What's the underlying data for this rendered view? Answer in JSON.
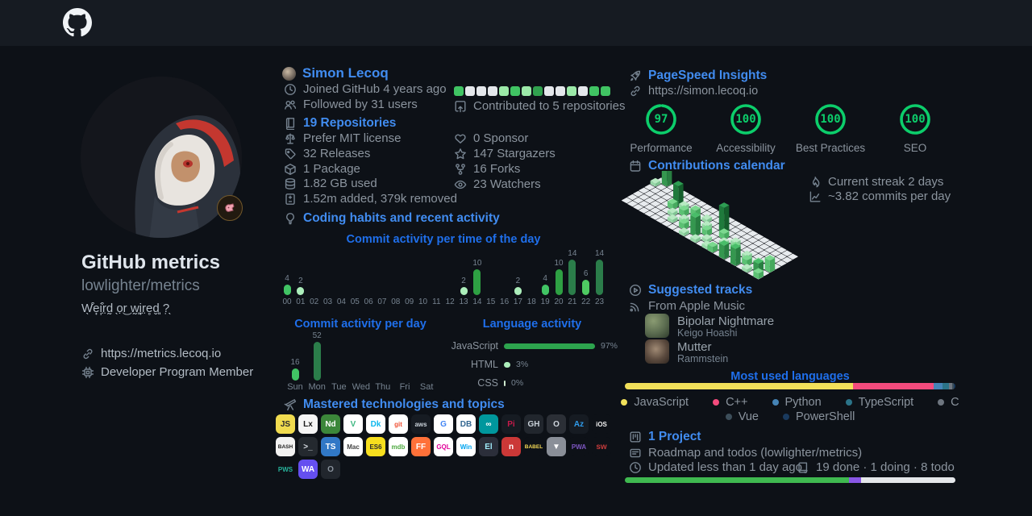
{
  "profile": {
    "title": "GitHub metrics",
    "subtitle": "lowlighter/metrics",
    "tagline": "W̖͒e̟i̦͒r̤d̰ ̖ọr͜ w̰͈i̟r̤e̥d̬͈ ?̣̖",
    "website": "https://metrics.lecoq.io",
    "membership": "Developer Program Member"
  },
  "user": {
    "name": "Simon Lecoq",
    "joined": "Joined GitHub 4 years ago",
    "followers": "Followed by 31 users"
  },
  "repositories": {
    "heading": "19 Repositories",
    "license": "Prefer MIT license",
    "releases": "32 Releases",
    "packages": "1 Package",
    "storage": "1.82 GB used",
    "diff": "1.52m added, 379k removed"
  },
  "contributions": {
    "label": "Contributed to 5 repositories",
    "squares": [
      2,
      0,
      0,
      0,
      1,
      2,
      1,
      3,
      0,
      0,
      1,
      0,
      2,
      2
    ],
    "level_colors": {
      "0": "#e4e7eb",
      "1": "#9be9a8",
      "2": "#40c463",
      "3": "#30a14e"
    }
  },
  "community": {
    "sponsors": "0 Sponsor",
    "stargazers": "147 Stargazers",
    "forks": "16 Forks",
    "watchers": "23 Watchers"
  },
  "habits": {
    "heading": "Coding habits and recent activity"
  },
  "chart_data": [
    {
      "id": "hourly",
      "type": "bar",
      "title": "Commit activity per time of the day",
      "categories": [
        "00",
        "01",
        "02",
        "03",
        "04",
        "05",
        "06",
        "07",
        "08",
        "09",
        "10",
        "11",
        "12",
        "13",
        "14",
        "15",
        "16",
        "17",
        "18",
        "19",
        "20",
        "21",
        "22",
        "23"
      ],
      "values": [
        4,
        2,
        0,
        0,
        0,
        0,
        0,
        0,
        0,
        0,
        0,
        0,
        0,
        2,
        10,
        0,
        0,
        2,
        0,
        4,
        10,
        14,
        6,
        14
      ],
      "colors": [
        "#41c464",
        "#aceebb",
        "",
        "",
        "",
        "",
        "",
        "",
        "",
        "",
        "",
        "",
        "",
        "#aceebb",
        "#2ea043",
        "",
        "",
        "#aceebb",
        "",
        "#41c464",
        "#2ea043",
        "#2b7d4a",
        "#4fca62",
        "#2b7d4a"
      ]
    },
    {
      "id": "daily",
      "type": "bar",
      "title": "Commit activity per day",
      "categories": [
        "Sun",
        "Mon",
        "Tue",
        "Wed",
        "Thu",
        "Fri",
        "Sat"
      ],
      "values": [
        16,
        52,
        0,
        0,
        0,
        0,
        0
      ],
      "colors": [
        "#41c464",
        "#2b7d4a",
        "",
        "",
        "",
        "",
        ""
      ]
    },
    {
      "id": "language_activity",
      "type": "bar",
      "title": "Language activity",
      "categories": [
        "JavaScript",
        "HTML",
        "CSS"
      ],
      "values": [
        97,
        3,
        0
      ],
      "display": [
        "97%",
        "3%",
        "0%"
      ],
      "colors": [
        "#2da44e",
        "#aceebb",
        "#cde8cd"
      ]
    },
    {
      "id": "pagespeed",
      "type": "gauge",
      "items": [
        {
          "label": "Performance",
          "value": 97
        },
        {
          "label": "Accessibility",
          "value": 100
        },
        {
          "label": "Best Practices",
          "value": 100
        },
        {
          "label": "SEO",
          "value": 100
        }
      ],
      "ring_color": "#0cce6b"
    },
    {
      "id": "most_used_languages",
      "type": "stacked-bar",
      "title": "Most used languages",
      "series": [
        {
          "name": "JavaScript",
          "color": "#f1e05a",
          "value": 69
        },
        {
          "name": "C++",
          "color": "#f34b7d",
          "value": 24.5
        },
        {
          "name": "Python",
          "color": "#4584b6",
          "value": 2.6
        },
        {
          "name": "TypeScript",
          "color": "#2b7489",
          "value": 2
        },
        {
          "name": "C",
          "color": "#6e7680",
          "value": 1
        },
        {
          "name": "Vue",
          "color": "#3c4e5a",
          "value": 0.5
        },
        {
          "name": "PowerShell",
          "color": "#1a3a5e",
          "value": 0.4
        }
      ],
      "legend_rows": [
        [
          0,
          1,
          2,
          3,
          4
        ],
        [
          5,
          6
        ]
      ]
    },
    {
      "id": "project_progress",
      "type": "stacked-bar",
      "series": [
        {
          "name": "done",
          "color": "#3fb950",
          "value": 19
        },
        {
          "name": "doing",
          "color": "#8957e5",
          "value": 1
        },
        {
          "name": "todo",
          "color": "#e4e7ea",
          "value": 8
        }
      ]
    }
  ],
  "pagespeed": {
    "heading": "PageSpeed Insights",
    "url": "https://simon.lecoq.io"
  },
  "calendar": {
    "heading": "Contributions calendar",
    "streak": "Current streak 2 days",
    "average": "~3.82 commits per day",
    "cols": 24,
    "rows": 7,
    "cells": [
      [
        1,
        0,
        3,
        10
      ],
      [
        0,
        1,
        1
      ],
      [
        4,
        1,
        1
      ],
      [
        5,
        2,
        4,
        10
      ],
      [
        5,
        3,
        2
      ],
      [
        6,
        2,
        1
      ],
      [
        6,
        4,
        1
      ],
      [
        7,
        3,
        2
      ],
      [
        7,
        5,
        1
      ],
      [
        8,
        2,
        2
      ],
      [
        8,
        4,
        1
      ],
      [
        9,
        3,
        1
      ],
      [
        9,
        5,
        2
      ],
      [
        10,
        2,
        1
      ],
      [
        10,
        4,
        2
      ],
      [
        10,
        6,
        1
      ],
      [
        11,
        3,
        1
      ],
      [
        11,
        5,
        3,
        12
      ],
      [
        12,
        4,
        2
      ],
      [
        12,
        6,
        1
      ],
      [
        13,
        2,
        4,
        16
      ],
      [
        13,
        5,
        1
      ],
      [
        14,
        3,
        2
      ],
      [
        14,
        6,
        1
      ],
      [
        15,
        4,
        1
      ],
      [
        15,
        6,
        2
      ],
      [
        16,
        3,
        1
      ],
      [
        16,
        5,
        1
      ],
      [
        17,
        4,
        2
      ],
      [
        17,
        6,
        3,
        6
      ],
      [
        18,
        5,
        1
      ],
      [
        19,
        4,
        1
      ],
      [
        19,
        6,
        3,
        10
      ],
      [
        20,
        5,
        2
      ],
      [
        21,
        4,
        1
      ],
      [
        21,
        6,
        1
      ],
      [
        22,
        5,
        3
      ],
      [
        23,
        4,
        2,
        8
      ],
      [
        23,
        6,
        2
      ]
    ]
  },
  "music": {
    "heading": "Suggested tracks",
    "source": "From Apple Music",
    "tracks": [
      {
        "title": "Bipolar Nightmare",
        "artist": "Keigo Hoashi"
      },
      {
        "title": "Mutter",
        "artist": "Rammstein"
      }
    ]
  },
  "languages": {
    "heading": "Most used languages"
  },
  "project": {
    "heading": "1 Project",
    "name": "Roadmap and todos (lowlighter/metrics)",
    "updated": "Updated less than 1 day ago",
    "stats": "19 done · 1 doing · 8 todo"
  },
  "technologies": {
    "heading": "Mastered technologies and topics",
    "rows": [
      [
        {
          "name": "javascript",
          "short": "JS",
          "bg": "#f0db4f",
          "fg": "#2b2b2b"
        },
        {
          "name": "linux",
          "short": "Lx",
          "bg": "#f5f5f5",
          "fg": "#1a1a1a"
        },
        {
          "name": "nodejs",
          "short": "Nd",
          "bg": "#3c873a",
          "fg": "#ffffff"
        },
        {
          "name": "vuejs",
          "short": "V",
          "bg": "#ffffff",
          "fg": "#41b883"
        },
        {
          "name": "docker",
          "short": "Dk",
          "bg": "#ffffff",
          "fg": "#0db7ed"
        },
        {
          "name": "git",
          "short": "git",
          "bg": "#ffffff",
          "fg": "#f05033"
        },
        {
          "name": "aws",
          "short": "aws",
          "bg": "#161b22",
          "fg": "#c9d1d9"
        },
        {
          "name": "google",
          "short": "G",
          "bg": "#ffffff",
          "fg": "#4285f4"
        },
        {
          "name": "sql-database",
          "short": "DB",
          "bg": "#ffffff",
          "fg": "#336791"
        },
        {
          "name": "arduino",
          "short": "∞",
          "bg": "#00979d",
          "fg": "#ffffff"
        },
        {
          "name": "raspberry-pi",
          "short": "Pi",
          "bg": "#161b22",
          "fg": "#c51a4a"
        },
        {
          "name": "github",
          "short": "GH",
          "bg": "#21262d",
          "fg": "#c9d1d9"
        },
        {
          "name": "opera",
          "short": "O",
          "bg": "#2b2f36",
          "fg": "#cfd6dd"
        },
        {
          "name": "azure",
          "short": "Az",
          "bg": "#161b22",
          "fg": "#2f9bea"
        },
        {
          "name": "ios",
          "short": "iOS",
          "bg": "#0d1117",
          "fg": "#f2f2f2"
        }
      ],
      [
        {
          "name": "bash",
          "short": "BASH",
          "bg": "#f2f2f2",
          "fg": "#222222"
        },
        {
          "name": "terminal",
          "short": ">_",
          "bg": "#24292f",
          "fg": "#d8dee4"
        },
        {
          "name": "typescript",
          "short": "TS",
          "bg": "#3178c6",
          "fg": "#ffffff"
        },
        {
          "name": "macos",
          "short": "Mac",
          "bg": "#ffffff",
          "fg": "#444444"
        },
        {
          "name": "es6",
          "short": "ES6",
          "bg": "#f7df1e",
          "fg": "#2b2b2b"
        },
        {
          "name": "mongodb",
          "short": "mdb",
          "bg": "#ffffff",
          "fg": "#4faa41"
        },
        {
          "name": "firefox",
          "short": "FF",
          "bg": "#ff7139",
          "fg": "#ffffff"
        },
        {
          "name": "graphql",
          "short": "GQL",
          "bg": "#ffffff",
          "fg": "#e10098"
        },
        {
          "name": "windows",
          "short": "Win",
          "bg": "#ffffff",
          "fg": "#00a4ef"
        },
        {
          "name": "electron",
          "short": "El",
          "bg": "#2b2e3a",
          "fg": "#9feaf9"
        },
        {
          "name": "npm",
          "short": "n",
          "bg": "#cb3837",
          "fg": "#ffffff"
        },
        {
          "name": "babel",
          "short": "BABEL",
          "bg": "#0d1117",
          "fg": "#f5da55"
        },
        {
          "name": "vercel",
          "short": "▼",
          "bg": "#8a8f98",
          "fg": "#ffffff"
        },
        {
          "name": "pwa",
          "short": "PWA",
          "bg": "#0d1117",
          "fg": "#7e57c2"
        },
        {
          "name": "swift",
          "short": "sw",
          "bg": "#0d1117",
          "fg": "#c43b3b"
        }
      ],
      [
        {
          "name": "pws",
          "short": "PWS",
          "bg": "#0d1117",
          "fg": "#27b39c"
        },
        {
          "name": "webassembly",
          "short": "WA",
          "bg": "#654ff0",
          "fg": "#ffffff"
        },
        {
          "name": "dark-logo",
          "short": "O",
          "bg": "#21262d",
          "fg": "#8b949e"
        }
      ]
    ]
  }
}
